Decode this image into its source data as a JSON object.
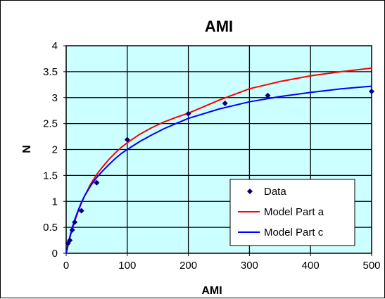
{
  "chart_data": {
    "type": "scatter",
    "title": "AMI",
    "xlabel": "AMI",
    "ylabel": "N",
    "xlim": [
      0,
      500
    ],
    "ylim": [
      0,
      4
    ],
    "x_ticks": [
      "0",
      "100",
      "200",
      "300",
      "400",
      "500"
    ],
    "y_ticks": [
      "0",
      "0.5",
      "1",
      "1.5",
      "2",
      "2.5",
      "3",
      "3.5",
      "4"
    ],
    "grid": true,
    "plot_background": "#ccffff",
    "legend_position": "bottom-right",
    "series": [
      {
        "name": "Data",
        "kind": "markers",
        "color": "#000080",
        "x": [
          3,
          6,
          10,
          14,
          25,
          50,
          100,
          200,
          260,
          330,
          500
        ],
        "y": [
          0.19,
          0.25,
          0.45,
          0.6,
          0.82,
          1.36,
          2.19,
          2.69,
          2.89,
          3.04,
          3.12
        ]
      },
      {
        "name": "Model Part a",
        "kind": "line",
        "color": "#ff0000",
        "x": [
          0,
          5,
          10,
          15,
          20,
          25,
          30,
          40,
          50,
          60,
          70,
          80,
          90,
          100,
          120,
          140,
          160,
          180,
          200,
          250,
          300,
          350,
          400,
          450,
          500
        ],
        "y": [
          0,
          0.25,
          0.47,
          0.65,
          0.82,
          0.97,
          1.1,
          1.33,
          1.52,
          1.67,
          1.81,
          1.93,
          2.04,
          2.13,
          2.29,
          2.42,
          2.53,
          2.62,
          2.7,
          2.95,
          3.17,
          3.31,
          3.42,
          3.5,
          3.57
        ]
      },
      {
        "name": "Model Part c",
        "kind": "line",
        "color": "#0000ff",
        "x": [
          0,
          5,
          10,
          15,
          20,
          25,
          30,
          40,
          50,
          60,
          70,
          80,
          90,
          100,
          120,
          140,
          160,
          180,
          200,
          250,
          300,
          350,
          400,
          450,
          500
        ],
        "y": [
          0,
          0.27,
          0.5,
          0.68,
          0.84,
          0.98,
          1.1,
          1.3,
          1.46,
          1.59,
          1.71,
          1.82,
          1.92,
          2.0,
          2.15,
          2.28,
          2.4,
          2.5,
          2.6,
          2.78,
          2.92,
          3.02,
          3.1,
          3.17,
          3.22
        ]
      }
    ]
  }
}
